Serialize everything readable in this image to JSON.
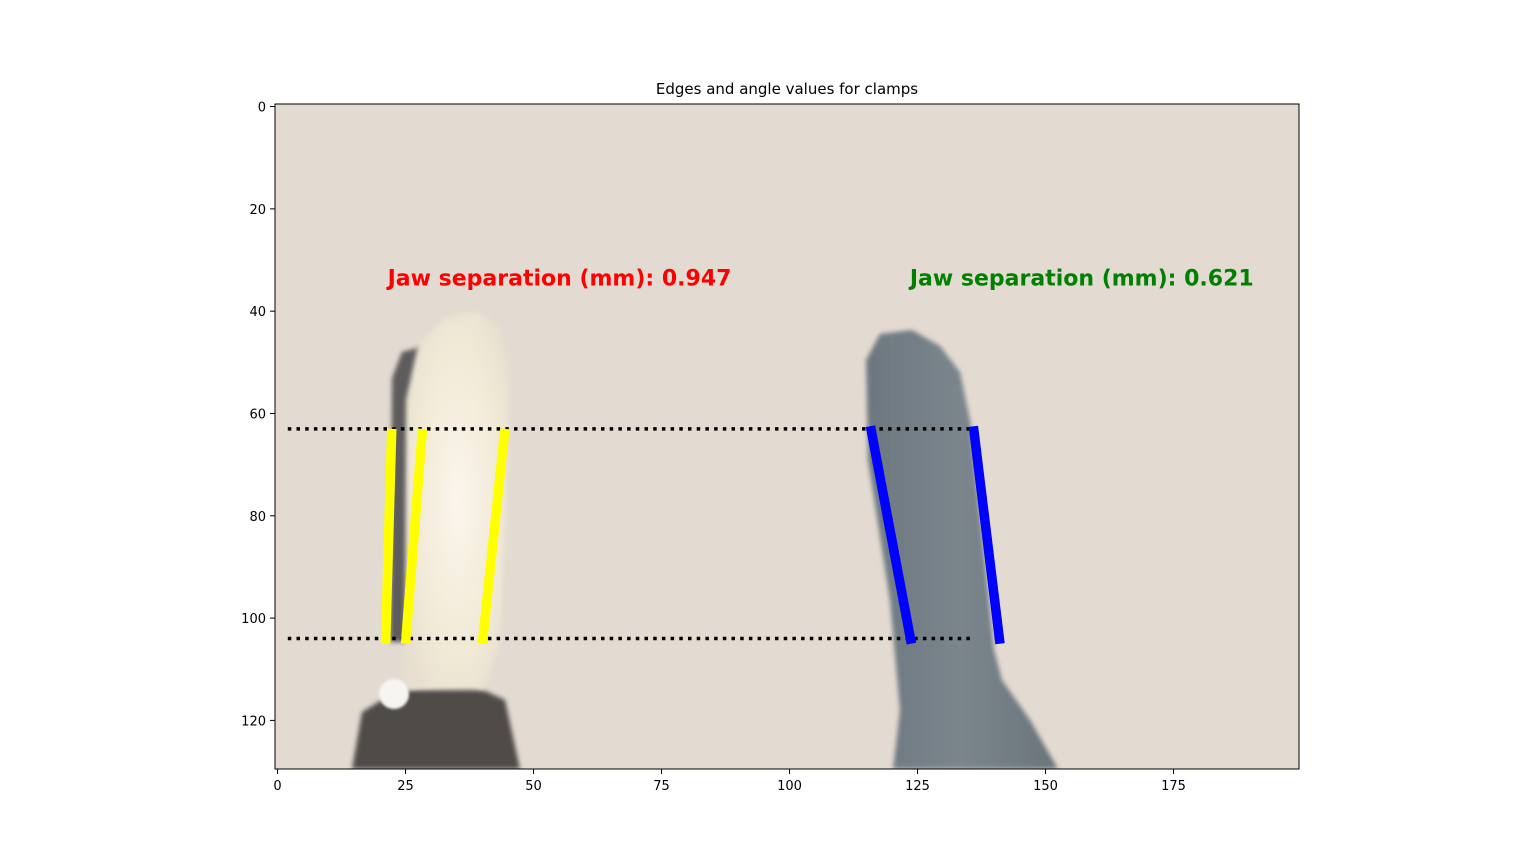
{
  "chart_data": {
    "type": "image-annotation",
    "title": "Edges and angle values for clamps",
    "xlim": [
      0,
      200
    ],
    "ylim": [
      130,
      0
    ],
    "xticks": [
      0,
      25,
      50,
      75,
      100,
      125,
      150,
      175
    ],
    "yticks": [
      0,
      20,
      40,
      60,
      80,
      100,
      120
    ],
    "grid": false,
    "reference_lines": [
      {
        "name": "top-reference",
        "y": 63,
        "x": [
          2,
          136
        ],
        "style": "dotted",
        "color": "#000000"
      },
      {
        "name": "bottom-reference",
        "y": 104,
        "x": [
          2,
          136
        ],
        "style": "dotted",
        "color": "#000000"
      }
    ],
    "edges": [
      {
        "clamp": "left",
        "color": "#ffff00",
        "x1": 22.3,
        "y1": 63,
        "x2": 21.1,
        "y2": 105
      },
      {
        "clamp": "left",
        "color": "#ffff00",
        "x1": 28.3,
        "y1": 63,
        "x2": 25.0,
        "y2": 105
      },
      {
        "clamp": "left",
        "color": "#ffff00",
        "x1": 44.4,
        "y1": 63,
        "x2": 40.0,
        "y2": 105
      },
      {
        "clamp": "right",
        "color": "#0000ff",
        "x1": 115.8,
        "y1": 62.5,
        "x2": 123.8,
        "y2": 105
      },
      {
        "clamp": "right",
        "color": "#0000ff",
        "x1": 135.9,
        "y1": 62.5,
        "x2": 141.1,
        "y2": 105
      }
    ],
    "annotations": [
      {
        "text": "Jaw separation (mm): 0.947",
        "x": 21.5,
        "y": 35,
        "color": "#ff0000"
      },
      {
        "text": "Jaw separation (mm): 0.621",
        "x": 123.5,
        "y": 35,
        "color": "#008000"
      }
    ]
  }
}
